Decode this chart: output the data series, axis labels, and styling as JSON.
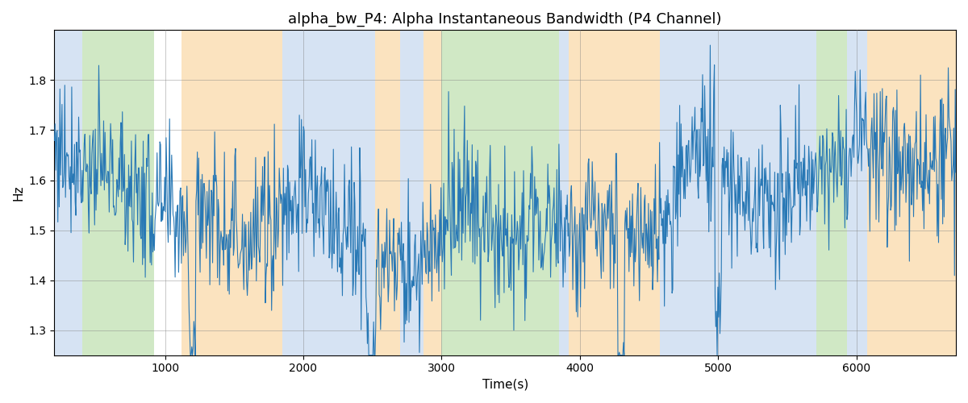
{
  "title": "alpha_bw_P4: Alpha Instantaneous Bandwidth (P4 Channel)",
  "xlabel": "Time(s)",
  "ylabel": "Hz",
  "xlim": [
    200,
    6720
  ],
  "ylim": [
    1.25,
    1.9
  ],
  "line_color": "#2878b5",
  "line_width": 0.8,
  "seed": 77,
  "n_points": 1300,
  "x_start": 200,
  "x_end": 6720,
  "bands": [
    {
      "xstart": 200,
      "xend": 400,
      "color": "#aec8e8",
      "alpha": 0.5
    },
    {
      "xstart": 400,
      "xend": 920,
      "color": "#98cc80",
      "alpha": 0.45
    },
    {
      "xstart": 920,
      "xend": 1120,
      "color": "#ffffff",
      "alpha": 0.0
    },
    {
      "xstart": 1120,
      "xend": 1850,
      "color": "#f8c880",
      "alpha": 0.5
    },
    {
      "xstart": 1850,
      "xend": 2520,
      "color": "#aec8e8",
      "alpha": 0.5
    },
    {
      "xstart": 2520,
      "xend": 2700,
      "color": "#f8c880",
      "alpha": 0.5
    },
    {
      "xstart": 2700,
      "xend": 2870,
      "color": "#aec8e8",
      "alpha": 0.5
    },
    {
      "xstart": 2870,
      "xend": 3000,
      "color": "#f8c880",
      "alpha": 0.5
    },
    {
      "xstart": 3000,
      "xend": 3850,
      "color": "#98cc80",
      "alpha": 0.45
    },
    {
      "xstart": 3850,
      "xend": 3920,
      "color": "#aec8e8",
      "alpha": 0.5
    },
    {
      "xstart": 3920,
      "xend": 4580,
      "color": "#f8c880",
      "alpha": 0.5
    },
    {
      "xstart": 4580,
      "xend": 5710,
      "color": "#aec8e8",
      "alpha": 0.5
    },
    {
      "xstart": 5710,
      "xend": 5930,
      "color": "#98cc80",
      "alpha": 0.45
    },
    {
      "xstart": 5930,
      "xend": 6080,
      "color": "#aec8e8",
      "alpha": 0.5
    },
    {
      "xstart": 6080,
      "xend": 6720,
      "color": "#f8c880",
      "alpha": 0.5
    }
  ]
}
